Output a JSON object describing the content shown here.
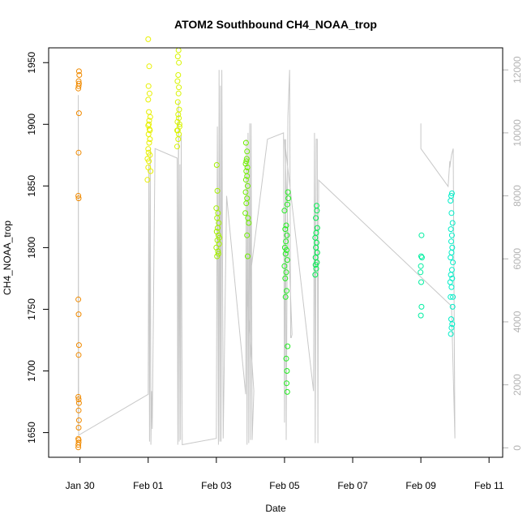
{
  "chart_data": {
    "type": "scatter",
    "title": "ATOM2 Southbound CH4_NOAA_trop",
    "xlabel": "Date",
    "ylabel": "CH4_NOAA_trop",
    "x_ticks": [
      "Jan 30",
      "Feb 01",
      "Feb 03",
      "Feb 05",
      "Feb 07",
      "Feb 09",
      "Feb 11"
    ],
    "x_tick_days": [
      0,
      2,
      4,
      6,
      8,
      10,
      12
    ],
    "xlim_days": [
      -0.92,
      12.4
    ],
    "ylim": [
      1630,
      1962
    ],
    "y_ticks": [
      1650,
      1700,
      1750,
      1800,
      1850,
      1900,
      1950
    ],
    "y2lim": [
      -300,
      12700
    ],
    "y2_ticks": [
      0,
      2000,
      4000,
      6000,
      8000,
      10000,
      12000
    ],
    "y2_axis_color": "#b3b3b3",
    "secondary_line_color": "#c8c8c8",
    "series": [
      {
        "color": "#f08a00",
        "points": [
          [
            -0.05,
            1638
          ],
          [
            -0.05,
            1640
          ],
          [
            -0.04,
            1642
          ],
          [
            -0.04,
            1644
          ],
          [
            -0.05,
            1645
          ],
          [
            -0.04,
            1654
          ],
          [
            -0.03,
            1660
          ],
          [
            -0.04,
            1668
          ],
          [
            -0.03,
            1674
          ],
          [
            -0.04,
            1677
          ],
          [
            -0.05,
            1679
          ],
          [
            -0.04,
            1713
          ],
          [
            -0.03,
            1721
          ],
          [
            -0.04,
            1746
          ],
          [
            -0.05,
            1758
          ],
          [
            -0.04,
            1840
          ],
          [
            -0.05,
            1842
          ],
          [
            -0.04,
            1877
          ],
          [
            -0.03,
            1909
          ],
          [
            -0.05,
            1929
          ],
          [
            -0.04,
            1931
          ],
          [
            -0.03,
            1933
          ],
          [
            -0.04,
            1935
          ],
          [
            -0.02,
            1940
          ],
          [
            -0.03,
            1943
          ]
        ]
      },
      {
        "color": "#e8f000",
        "points": [
          [
            2.0,
            1865
          ],
          [
            2.02,
            1870
          ],
          [
            2.05,
            1875
          ],
          [
            2.0,
            1880
          ],
          [
            2.03,
            1885
          ],
          [
            2.05,
            1888
          ],
          [
            2.01,
            1892
          ],
          [
            2.04,
            1896
          ],
          [
            2.0,
            1899
          ],
          [
            2.03,
            1903
          ],
          [
            2.06,
            1906
          ],
          [
            2.02,
            1910
          ],
          [
            2.0,
            1920
          ],
          [
            2.04,
            1925
          ],
          [
            2.01,
            1931
          ],
          [
            2.03,
            1947
          ],
          [
            2.0,
            1969
          ],
          [
            1.98,
            1855
          ],
          [
            2.07,
            1862
          ],
          [
            2.01,
            1877
          ],
          [
            1.98,
            1872
          ],
          [
            2.05,
            1895
          ],
          [
            2.02,
            1900
          ]
        ]
      },
      {
        "color": "#d8f400",
        "points": [
          [
            2.85,
            1882
          ],
          [
            2.88,
            1888
          ],
          [
            2.9,
            1892
          ],
          [
            2.87,
            1895
          ],
          [
            2.92,
            1898
          ],
          [
            2.86,
            1902
          ],
          [
            2.9,
            1905
          ],
          [
            2.88,
            1908
          ],
          [
            2.91,
            1912
          ],
          [
            2.87,
            1918
          ],
          [
            2.89,
            1925
          ],
          [
            2.9,
            1930
          ],
          [
            2.86,
            1935
          ],
          [
            2.88,
            1940
          ],
          [
            2.9,
            1950
          ],
          [
            2.87,
            1955
          ],
          [
            2.89,
            1960
          ],
          [
            2.92,
            1900
          ],
          [
            2.85,
            1895
          ]
        ]
      },
      {
        "color": "#a4f000",
        "points": [
          [
            4.02,
            1793
          ],
          [
            4.05,
            1797
          ],
          [
            4.0,
            1800
          ],
          [
            4.08,
            1803
          ],
          [
            4.03,
            1806
          ],
          [
            4.06,
            1810
          ],
          [
            4.01,
            1813
          ],
          [
            4.04,
            1816
          ],
          [
            4.07,
            1820
          ],
          [
            4.02,
            1824
          ],
          [
            4.05,
            1828
          ],
          [
            4.0,
            1832
          ],
          [
            4.03,
            1846
          ],
          [
            4.01,
            1867
          ],
          [
            4.09,
            1808
          ],
          [
            4.06,
            1795
          ]
        ]
      },
      {
        "color": "#70ee00",
        "points": [
          [
            4.85,
            1828
          ],
          [
            4.88,
            1836
          ],
          [
            4.9,
            1840
          ],
          [
            4.86,
            1845
          ],
          [
            4.92,
            1850
          ],
          [
            4.87,
            1855
          ],
          [
            4.9,
            1858
          ],
          [
            4.88,
            1862
          ],
          [
            4.91,
            1865
          ],
          [
            4.86,
            1868
          ],
          [
            4.89,
            1872
          ],
          [
            4.9,
            1878
          ],
          [
            4.87,
            1885
          ],
          [
            4.93,
            1824
          ],
          [
            4.95,
            1820
          ],
          [
            4.9,
            1810
          ],
          [
            4.92,
            1793
          ],
          [
            4.88,
            1870
          ]
        ]
      },
      {
        "color": "#22ee20",
        "points": [
          [
            6.02,
            1775
          ],
          [
            6.05,
            1780
          ],
          [
            6.0,
            1785
          ],
          [
            6.08,
            1790
          ],
          [
            6.03,
            1795
          ],
          [
            6.06,
            1798
          ],
          [
            6.01,
            1800
          ],
          [
            6.04,
            1805
          ],
          [
            6.07,
            1810
          ],
          [
            6.02,
            1815
          ],
          [
            6.05,
            1818
          ],
          [
            6.0,
            1830
          ],
          [
            6.1,
            1845
          ],
          [
            6.11,
            1840
          ],
          [
            6.08,
            1835
          ],
          [
            6.05,
            1710
          ],
          [
            6.07,
            1700
          ],
          [
            6.06,
            1690
          ],
          [
            6.08,
            1683
          ],
          [
            6.09,
            1720
          ],
          [
            6.03,
            1760
          ],
          [
            6.06,
            1765
          ]
        ]
      },
      {
        "color": "#00ee50",
        "points": [
          [
            6.9,
            1778
          ],
          [
            6.93,
            1783
          ],
          [
            6.95,
            1788
          ],
          [
            6.91,
            1792
          ],
          [
            6.96,
            1796
          ],
          [
            6.92,
            1800
          ],
          [
            6.94,
            1804
          ],
          [
            6.9,
            1808
          ],
          [
            6.93,
            1812
          ],
          [
            6.96,
            1816
          ],
          [
            6.92,
            1824
          ],
          [
            6.95,
            1830
          ],
          [
            6.94,
            1834
          ],
          [
            6.91,
            1786
          ]
        ]
      },
      {
        "color": "#00eea0",
        "points": [
          [
            10.0,
            1745
          ],
          [
            10.02,
            1752
          ],
          [
            10.01,
            1772
          ],
          [
            9.99,
            1780
          ],
          [
            10.0,
            1785
          ],
          [
            10.03,
            1792
          ],
          [
            10.01,
            1793
          ],
          [
            10.02,
            1810
          ]
        ]
      },
      {
        "color": "#00eec8",
        "points": [
          [
            10.88,
            1730
          ],
          [
            10.9,
            1735
          ],
          [
            10.92,
            1738
          ],
          [
            10.89,
            1742
          ],
          [
            10.93,
            1752
          ],
          [
            10.87,
            1760
          ],
          [
            10.9,
            1768
          ],
          [
            10.92,
            1775
          ],
          [
            10.88,
            1778
          ],
          [
            10.91,
            1782
          ],
          [
            10.94,
            1788
          ],
          [
            10.87,
            1792
          ],
          [
            10.9,
            1796
          ],
          [
            10.92,
            1800
          ],
          [
            10.89,
            1805
          ],
          [
            10.91,
            1810
          ],
          [
            10.88,
            1815
          ],
          [
            10.93,
            1820
          ],
          [
            10.9,
            1828
          ],
          [
            10.87,
            1838
          ],
          [
            10.89,
            1842
          ],
          [
            10.91,
            1844
          ],
          [
            10.94,
            1760
          ],
          [
            10.86,
            1772
          ]
        ]
      }
    ],
    "secondary_line": [
      [
        -0.05,
        550
      ],
      [
        -0.05,
        11200
      ],
      [
        -0.04,
        400
      ],
      [
        2.0,
        1700
      ],
      [
        2.02,
        9000
      ],
      [
        2.04,
        200
      ],
      [
        2.06,
        9500
      ],
      [
        2.08,
        100
      ],
      [
        2.1,
        1800
      ],
      [
        2.12,
        600
      ],
      [
        2.2,
        9500
      ],
      [
        2.85,
        9200
      ],
      [
        2.87,
        100
      ],
      [
        2.89,
        11000
      ],
      [
        2.91,
        200
      ],
      [
        2.93,
        9000
      ],
      [
        2.95,
        250
      ],
      [
        2.97,
        10000
      ],
      [
        3.0,
        100
      ],
      [
        4.0,
        300
      ],
      [
        4.03,
        10200
      ],
      [
        4.06,
        100
      ],
      [
        4.08,
        12000
      ],
      [
        4.1,
        200
      ],
      [
        4.12,
        11500
      ],
      [
        4.14,
        200
      ],
      [
        4.16,
        12000
      ],
      [
        4.2,
        300
      ],
      [
        4.3,
        8000
      ],
      [
        4.86,
        1700
      ],
      [
        4.88,
        9800
      ],
      [
        4.9,
        100
      ],
      [
        4.93,
        10000
      ],
      [
        4.95,
        150
      ],
      [
        4.98,
        10300
      ],
      [
        5.0,
        250
      ],
      [
        5.02,
        10300
      ],
      [
        5.05,
        250
      ],
      [
        5.1,
        1800
      ],
      [
        4.92,
        4800
      ],
      [
        5.5,
        9800
      ],
      [
        5.97,
        10000
      ],
      [
        6.0,
        800
      ],
      [
        6.03,
        9800
      ],
      [
        6.05,
        250
      ],
      [
        6.1,
        10500
      ],
      [
        6.15,
        12000
      ],
      [
        6.18,
        3500
      ],
      [
        6.2,
        3500
      ],
      [
        6.22,
        3600
      ],
      [
        6.0,
        9800
      ],
      [
        6.85,
        1800
      ],
      [
        6.88,
        10000
      ],
      [
        6.9,
        150
      ],
      [
        6.93,
        9800
      ],
      [
        6.96,
        9800
      ],
      [
        6.98,
        150
      ],
      [
        7.0,
        8500
      ],
      [
        10.9,
        4500
      ],
      [
        11.0,
        300
      ],
      [
        10.95,
        9500
      ],
      [
        10.9,
        9300
      ],
      [
        10.85,
        8900
      ],
      [
        10.85,
        9100
      ],
      [
        10.8,
        8300
      ],
      [
        10.0,
        9500
      ],
      [
        10.0,
        10300
      ]
    ]
  }
}
